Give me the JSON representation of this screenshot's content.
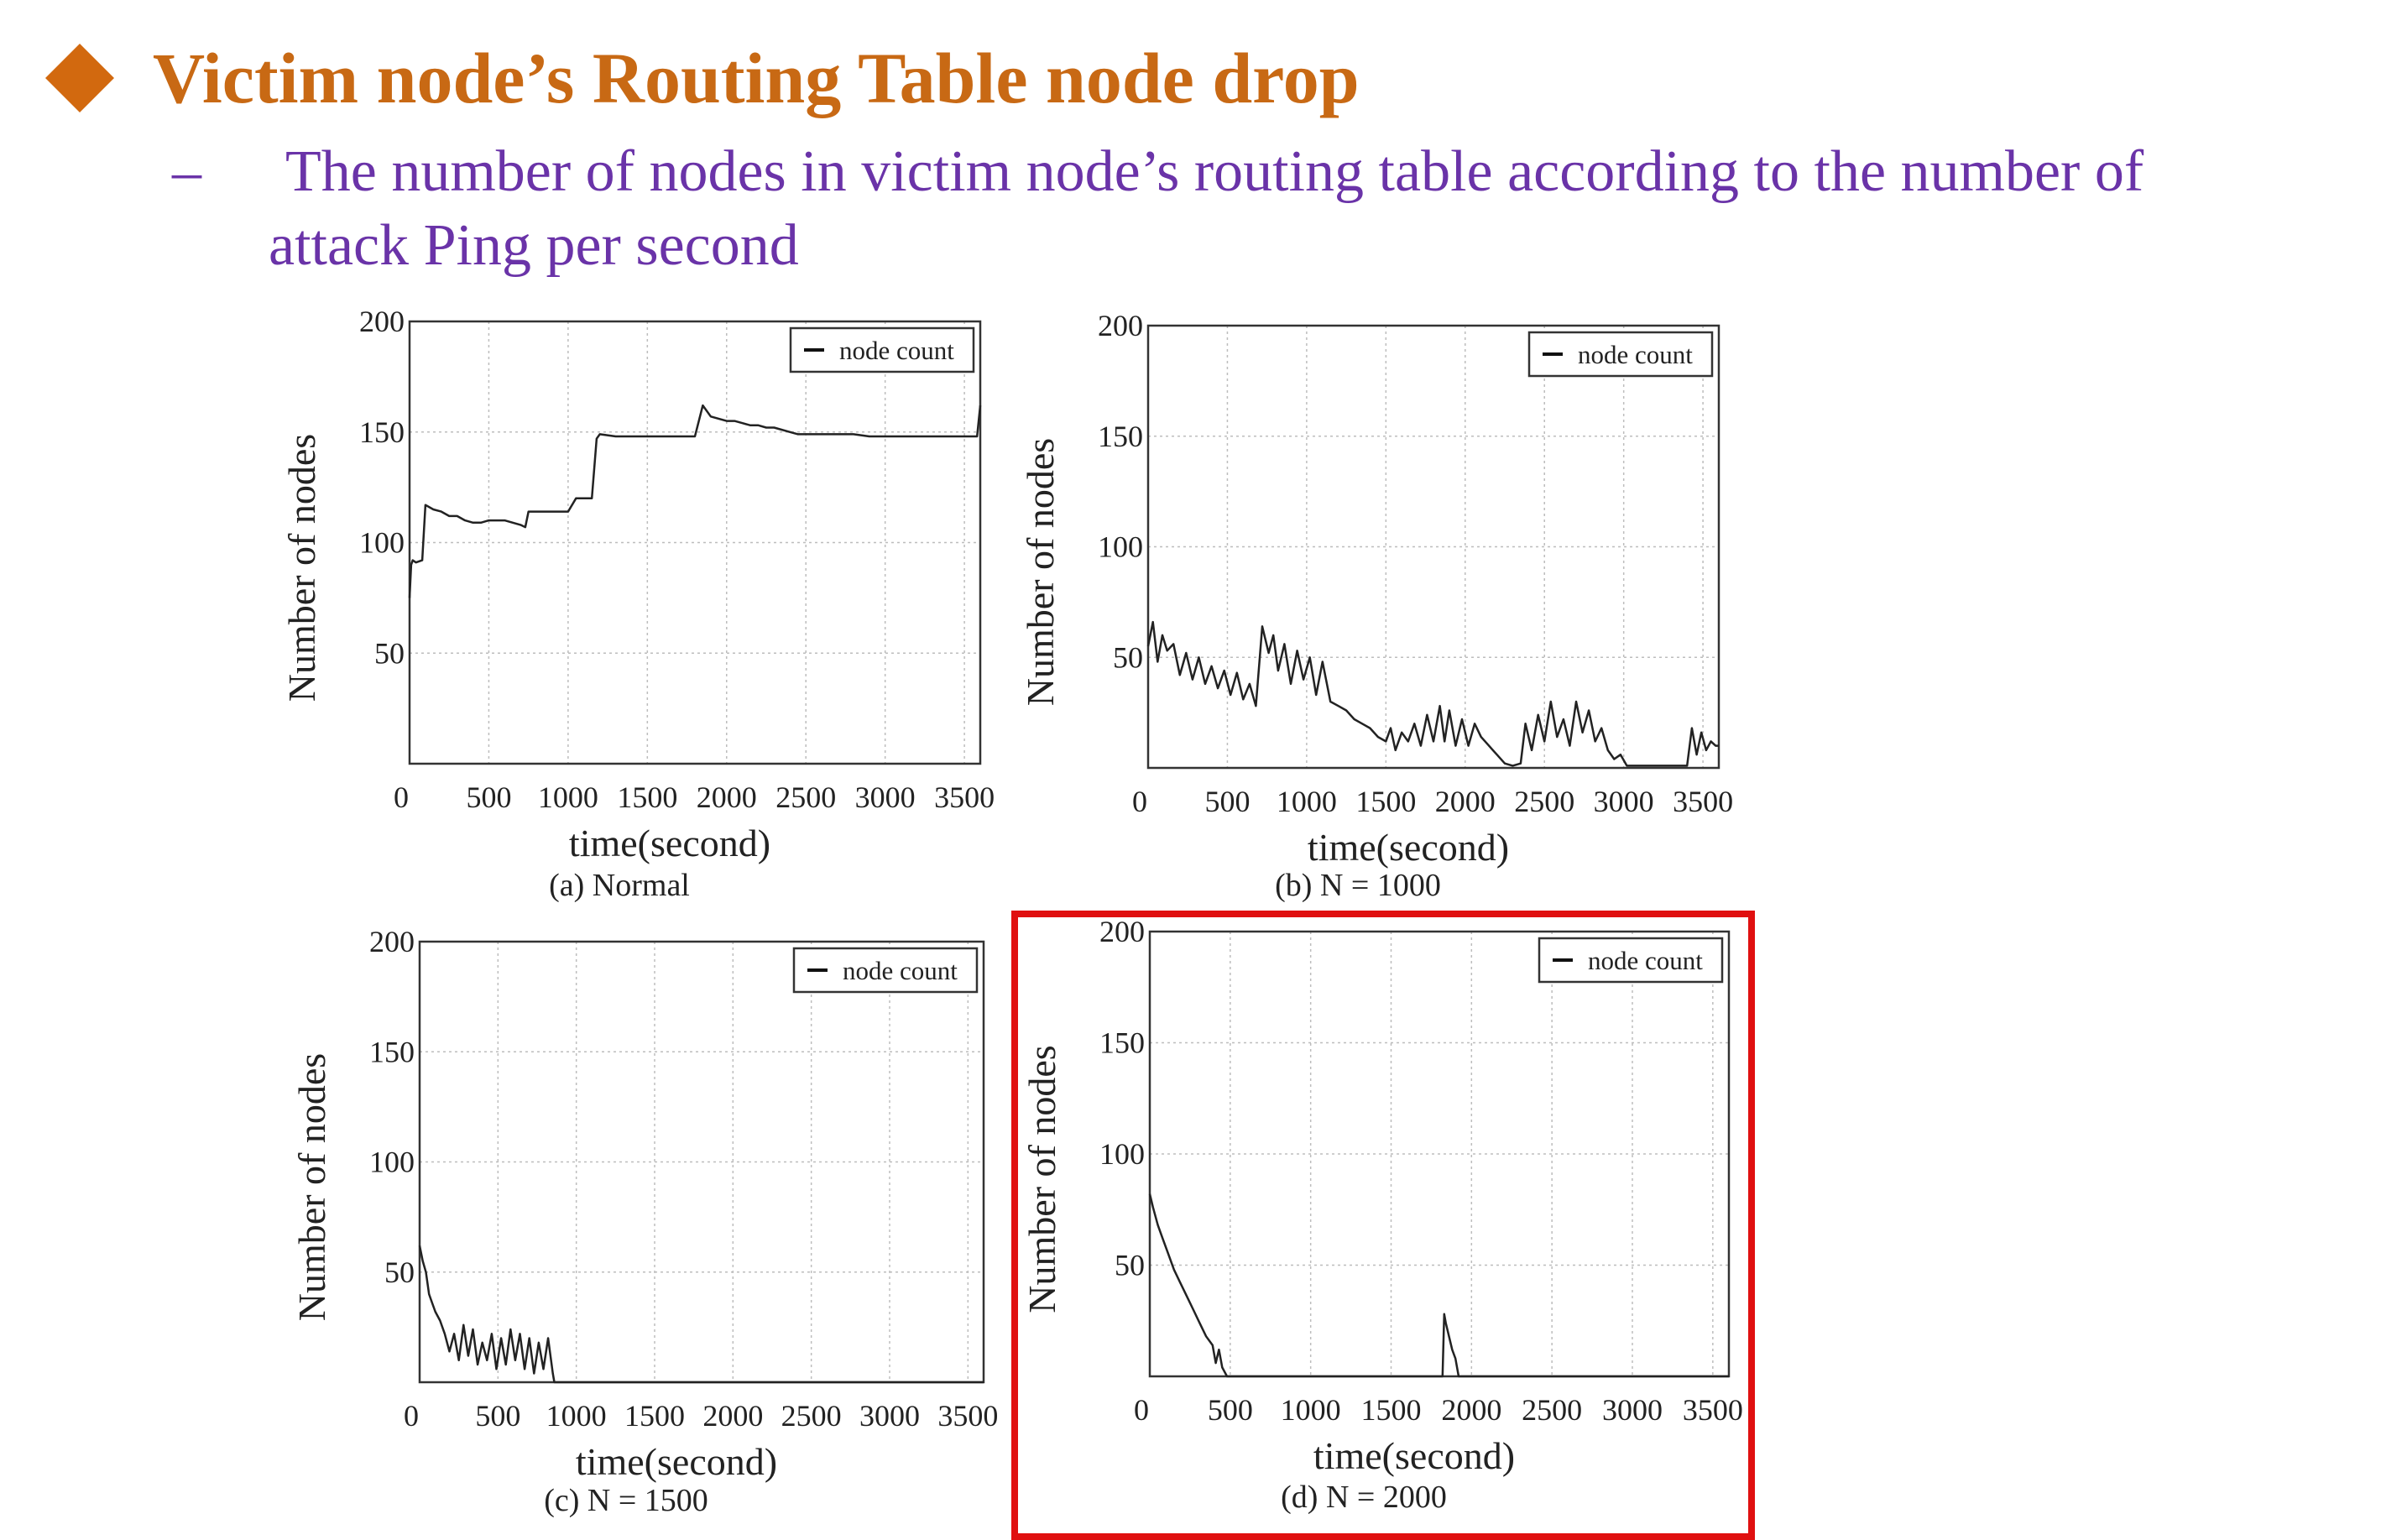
{
  "slide": {
    "title": "Victim node’s Routing Table node drop",
    "bullet_dash": "–",
    "subtitle_line1": "The number of nodes in victim node’s routing table according to the number of",
    "subtitle_line2": "attack Ping per second",
    "bullet_icon": "diamond-icon",
    "title_color": "#c86914",
    "subtitle_color": "#6a33a8",
    "highlight_color": "#e01010"
  },
  "chart_data": [
    {
      "type": "line",
      "caption": "(a) Normal",
      "xlabel": "time(second)",
      "ylabel": "Number of nodes",
      "xlim": [
        0,
        3600
      ],
      "ylim": [
        0,
        200
      ],
      "xticks": [
        0,
        500,
        1000,
        1500,
        2000,
        2500,
        3000,
        3500
      ],
      "yticks": [
        50,
        100,
        150,
        200
      ],
      "grid": true,
      "legend": "top-right",
      "series": [
        {
          "name": "node count",
          "x": [
            0,
            10,
            20,
            40,
            80,
            100,
            150,
            200,
            250,
            300,
            350,
            400,
            450,
            500,
            550,
            600,
            700,
            730,
            750,
            800,
            900,
            1000,
            1050,
            1100,
            1150,
            1180,
            1200,
            1300,
            1400,
            1500,
            1600,
            1700,
            1750,
            1800,
            1850,
            1900,
            1950,
            2000,
            2050,
            2100,
            2150,
            2200,
            2250,
            2300,
            2400,
            2450,
            2500,
            2600,
            2700,
            2800,
            2900,
            3000,
            3100,
            3200,
            3300,
            3400,
            3500,
            3580,
            3600
          ],
          "y": [
            75,
            90,
            92,
            91,
            92,
            117,
            115,
            114,
            112,
            112,
            110,
            109,
            109,
            110,
            110,
            110,
            108,
            107,
            114,
            114,
            114,
            114,
            120,
            120,
            120,
            147,
            149,
            148,
            148,
            148,
            148,
            148,
            148,
            148,
            162,
            157,
            156,
            155,
            155,
            154,
            153,
            153,
            152,
            152,
            150,
            149,
            149,
            149,
            149,
            149,
            148,
            148,
            148,
            148,
            148,
            148,
            148,
            148,
            162
          ]
        }
      ]
    },
    {
      "type": "line",
      "caption": "(b) N = 1000",
      "xlabel": "time(second)",
      "ylabel": "Number of nodes",
      "xlim": [
        0,
        3600
      ],
      "ylim": [
        0,
        200
      ],
      "xticks": [
        0,
        500,
        1000,
        1500,
        2000,
        2500,
        3000,
        3500
      ],
      "yticks": [
        50,
        100,
        150,
        200
      ],
      "grid": true,
      "legend": "top-right",
      "series": [
        {
          "name": "node count",
          "x": [
            0,
            30,
            60,
            90,
            120,
            160,
            200,
            240,
            280,
            320,
            360,
            400,
            440,
            480,
            520,
            560,
            600,
            640,
            680,
            720,
            760,
            790,
            820,
            860,
            900,
            940,
            980,
            1020,
            1060,
            1100,
            1150,
            1200,
            1250,
            1300,
            1350,
            1400,
            1450,
            1500,
            1530,
            1560,
            1600,
            1640,
            1680,
            1720,
            1760,
            1800,
            1840,
            1870,
            1900,
            1940,
            1980,
            2020,
            2060,
            2100,
            2150,
            2200,
            2250,
            2300,
            2350,
            2380,
            2420,
            2460,
            2500,
            2540,
            2580,
            2620,
            2660,
            2700,
            2740,
            2780,
            2820,
            2860,
            2900,
            2940,
            2980,
            3020,
            3060,
            3100,
            3150,
            3200,
            3250,
            3300,
            3350,
            3400,
            3430,
            3460,
            3490,
            3520,
            3550,
            3580,
            3600
          ],
          "y": [
            55,
            66,
            48,
            60,
            53,
            56,
            42,
            52,
            40,
            50,
            38,
            46,
            36,
            44,
            33,
            43,
            31,
            38,
            28,
            64,
            52,
            60,
            44,
            56,
            38,
            53,
            40,
            50,
            33,
            48,
            30,
            28,
            26,
            22,
            20,
            18,
            14,
            12,
            18,
            8,
            16,
            12,
            20,
            10,
            24,
            12,
            28,
            12,
            26,
            10,
            22,
            10,
            20,
            14,
            10,
            6,
            2,
            1,
            2,
            20,
            8,
            24,
            12,
            30,
            14,
            22,
            10,
            30,
            16,
            26,
            12,
            18,
            8,
            4,
            6,
            1,
            1,
            1,
            1,
            1,
            1,
            1,
            1,
            1,
            18,
            6,
            16,
            8,
            12,
            10,
            10
          ]
        }
      ]
    },
    {
      "type": "line",
      "caption": "(c) N = 1500",
      "xlabel": "time(second)",
      "ylabel": "Number of nodes",
      "xlim": [
        0,
        3600
      ],
      "ylim": [
        0,
        200
      ],
      "xticks": [
        0,
        500,
        1000,
        1500,
        2000,
        2500,
        3000,
        3500
      ],
      "yticks": [
        50,
        100,
        150,
        200
      ],
      "grid": true,
      "legend": "top-right",
      "series": [
        {
          "name": "node count",
          "x": [
            0,
            20,
            40,
            60,
            80,
            100,
            130,
            160,
            190,
            220,
            250,
            280,
            310,
            340,
            370,
            400,
            430,
            460,
            490,
            520,
            550,
            580,
            610,
            640,
            670,
            700,
            730,
            760,
            790,
            820,
            850,
            860,
            900,
            1000,
            1500,
            2000,
            2500,
            3000,
            3500,
            3600
          ],
          "y": [
            62,
            55,
            50,
            40,
            36,
            32,
            28,
            22,
            14,
            22,
            10,
            26,
            12,
            24,
            8,
            18,
            10,
            22,
            6,
            20,
            8,
            24,
            10,
            22,
            6,
            20,
            4,
            18,
            6,
            20,
            4,
            0,
            0,
            0,
            0,
            0,
            0,
            0,
            0,
            0
          ]
        }
      ]
    },
    {
      "type": "line",
      "caption": "(d) N = 2000",
      "xlabel": "time(second)",
      "ylabel": "Number of nodes",
      "xlim": [
        0,
        3600
      ],
      "ylim": [
        0,
        200
      ],
      "xticks": [
        0,
        500,
        1000,
        1500,
        2000,
        2500,
        3000,
        3500
      ],
      "yticks": [
        50,
        100,
        150,
        200
      ],
      "grid": true,
      "legend": "top-right",
      "series": [
        {
          "name": "node count",
          "x": [
            0,
            20,
            50,
            80,
            110,
            150,
            190,
            230,
            270,
            310,
            350,
            390,
            410,
            430,
            450,
            480,
            600,
            1000,
            1500,
            1800,
            1820,
            1830,
            1840,
            1860,
            1880,
            1900,
            1920,
            2000,
            2500,
            3000,
            3500,
            3600
          ],
          "y": [
            82,
            76,
            68,
            62,
            56,
            48,
            42,
            36,
            30,
            24,
            18,
            14,
            6,
            12,
            4,
            0,
            0,
            0,
            0,
            0,
            0,
            28,
            24,
            18,
            12,
            8,
            0,
            0,
            0,
            0,
            0,
            0
          ]
        }
      ]
    }
  ]
}
